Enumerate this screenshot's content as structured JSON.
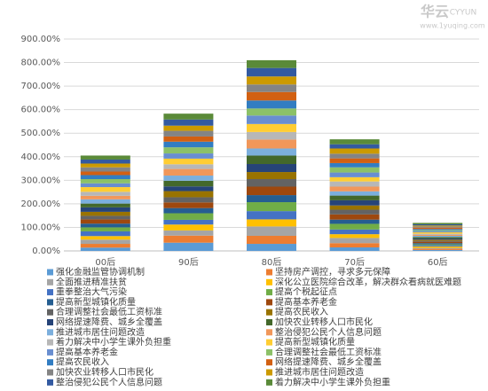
{
  "chart_data": {
    "type": "stacked_bar",
    "watermark": {
      "brand": "华云",
      "brand_en": "CYYUN",
      "url": "www.1yuqing.com"
    },
    "categories": [
      "00后",
      "90后",
      "80后",
      "70后",
      "60后"
    ],
    "ylim": [
      0,
      900
    ],
    "yticks": [
      {
        "value": 0,
        "label": "0.00%"
      },
      {
        "value": 100,
        "label": "100.00%"
      },
      {
        "value": 200,
        "label": "200.00%"
      },
      {
        "value": 300,
        "label": "300.00%"
      },
      {
        "value": 400,
        "label": "400.00%"
      },
      {
        "value": 500,
        "label": "500.00%"
      },
      {
        "value": 600,
        "label": "600.00%"
      },
      {
        "value": 700,
        "label": "700.00%"
      },
      {
        "value": 800,
        "label": "800.00%"
      },
      {
        "value": 900,
        "label": "900.00%"
      }
    ],
    "grid": true,
    "legend": "bottom",
    "series": [
      {
        "name": "强化金融监管协调机制",
        "color": "#5b9bd5",
        "values": [
          14,
          35,
          30,
          15,
          4
        ]
      },
      {
        "name": "坚持房产调控，寻求多元保障",
        "color": "#ed7d31",
        "values": [
          16,
          30,
          34,
          18,
          5
        ]
      },
      {
        "name": "全面推进精准扶贫",
        "color": "#a5a5a5",
        "values": [
          18,
          22,
          40,
          22,
          4
        ]
      },
      {
        "name": "深化公立医院综合改革，解决群众看病就医难题",
        "color": "#ffc000",
        "values": [
          15,
          25,
          30,
          16,
          6
        ]
      },
      {
        "name": "重拳整治大气污染",
        "color": "#4472c4",
        "values": [
          20,
          20,
          35,
          20,
          5
        ]
      },
      {
        "name": "提高个税起征点",
        "color": "#70ad47",
        "values": [
          17,
          28,
          38,
          24,
          4
        ]
      },
      {
        "name": "提高新型城镇化质量",
        "color": "#255e91",
        "values": [
          16,
          22,
          30,
          18,
          5
        ]
      },
      {
        "name": "提高基本养老金",
        "color": "#9e480e",
        "values": [
          18,
          24,
          36,
          22,
          6
        ]
      },
      {
        "name": "合理调整社会最低工资标准",
        "color": "#636363",
        "values": [
          15,
          22,
          32,
          20,
          4
        ]
      },
      {
        "name": "提高农民收入",
        "color": "#997300",
        "values": [
          17,
          26,
          30,
          18,
          5
        ]
      },
      {
        "name": "网络提速降费、城乡全覆盖",
        "color": "#264478",
        "values": [
          19,
          20,
          34,
          22,
          5
        ]
      },
      {
        "name": "加快农业转移人口市民化",
        "color": "#43682b",
        "values": [
          16,
          24,
          36,
          20,
          6
        ]
      },
      {
        "name": "推进城市居住问题改造",
        "color": "#7cafdd",
        "values": [
          18,
          22,
          30,
          18,
          5
        ]
      },
      {
        "name": "整治侵犯公民个人信息问题",
        "color": "#f1975a",
        "values": [
          15,
          28,
          38,
          20,
          4
        ]
      },
      {
        "name": "着力解决中小学生课外负担重",
        "color": "#b7b7b7",
        "values": [
          17,
          20,
          32,
          22,
          5
        ]
      },
      {
        "name": "提高新型城镇化质量",
        "color": "#ffcd33",
        "values": [
          20,
          24,
          34,
          18,
          6
        ]
      },
      {
        "name": "提高基本养老金",
        "color": "#698ed0",
        "values": [
          16,
          22,
          36,
          20,
          5
        ]
      },
      {
        "name": "合理调整社会最低工资标准",
        "color": "#8cc168",
        "values": [
          18,
          26,
          30,
          22,
          4
        ]
      },
      {
        "name": "提高农民收入",
        "color": "#327dc2",
        "values": [
          17,
          24,
          34,
          18,
          5
        ]
      },
      {
        "name": "网络提速降费、城乡全覆盖",
        "color": "#d26012",
        "values": [
          15,
          22,
          36,
          20,
          6
        ]
      },
      {
        "name": "加快农业转移人口市民化",
        "color": "#848484",
        "values": [
          18,
          24,
          32,
          20,
          5
        ]
      },
      {
        "name": "推进城市居住问题改造",
        "color": "#cc9a00",
        "values": [
          16,
          22,
          34,
          22,
          4
        ]
      },
      {
        "name": "整治侵犯公民个人信息问题",
        "color": "#335aa1",
        "values": [
          17,
          26,
          36,
          18,
          5
        ]
      },
      {
        "name": "着力解决中小学生课外负担重",
        "color": "#5a8a39",
        "values": [
          17,
          25,
          33,
          21,
          6
        ]
      }
    ]
  }
}
